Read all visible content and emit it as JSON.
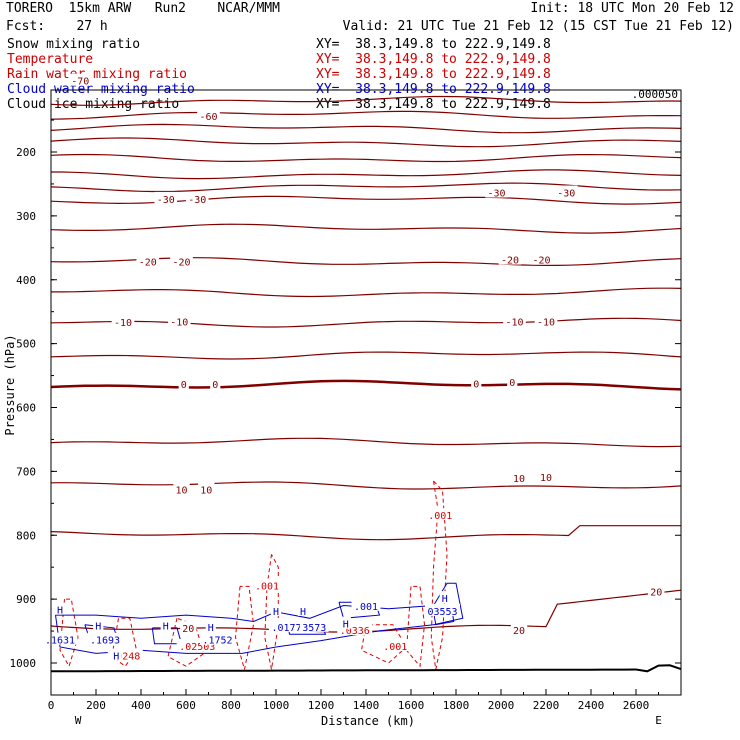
{
  "header": {
    "line1_left": "TORERO  15km ARW   Run2    NCAR/MMM",
    "line1_right": "Init: 18 UTC Mon 20 Feb 12",
    "line2_left": "Fcst:    27 h",
    "line2_right": "Valid: 21 UTC Tue 21 Feb 12 (15 CST Tue 21 Feb 12)"
  },
  "legend": [
    {
      "name": "Snow mixing ratio",
      "color": "#000000",
      "xy": "XY=  38.3,149.8 to 222.9,149.8"
    },
    {
      "name": "Temperature",
      "color": "#cc0000",
      "xy": "XY=  38.3,149.8 to 222.9,149.8"
    },
    {
      "name": "Rain water mixing ratio",
      "color": "#cc0000",
      "xy": "XY=  38.3,149.8 to 222.9,149.8"
    },
    {
      "name": "Cloud water mixing ratio",
      "color": "#0000cc",
      "xy": "XY=  38.3,149.8 to 222.9,149.8"
    },
    {
      "name": "Cloud ice mixing ratio",
      "color": "#000000",
      "xy": "XY=  38.3,149.8 to 222.9,149.8"
    }
  ],
  "corner_label": ".000050",
  "chart_data": {
    "type": "cross-section contour",
    "xlabel": "Distance (km)",
    "ylabel": "Pressure (hPa)",
    "xlim": [
      0,
      2800
    ],
    "ylim": [
      1025,
      90
    ],
    "x_ticks": [
      "0",
      "200",
      "400",
      "600",
      "800",
      "1000",
      "1200",
      "1400",
      "1600",
      "1800",
      "2000",
      "2200",
      "2400",
      "2600"
    ],
    "y_ticks": [
      "200",
      "300",
      "400",
      "500",
      "600",
      "700",
      "800",
      "900",
      "1000"
    ],
    "x_ends": [
      "W",
      "E"
    ],
    "temperature_isotherms_C": [
      -70,
      -65,
      -60,
      -55,
      -50,
      -45,
      -40,
      -35,
      -30,
      -25,
      -20,
      -15,
      -10,
      -5,
      0,
      5,
      10,
      15,
      20
    ],
    "temperature_labels": [
      {
        "text": "-70",
        "x": 130,
        "p": 90
      },
      {
        "text": "-60",
        "x": 700,
        "p": 145
      },
      {
        "text": "-30",
        "x": 510,
        "p": 275
      },
      {
        "text": "-30",
        "x": 650,
        "p": 275
      },
      {
        "text": "-30",
        "x": 1980,
        "p": 265
      },
      {
        "text": "-30",
        "x": 2290,
        "p": 265
      },
      {
        "text": "-20",
        "x": 430,
        "p": 373
      },
      {
        "text": "-20",
        "x": 580,
        "p": 373
      },
      {
        "text": "-20",
        "x": 2040,
        "p": 370
      },
      {
        "text": "-20",
        "x": 2180,
        "p": 370
      },
      {
        "text": "-10",
        "x": 320,
        "p": 468
      },
      {
        "text": "-10",
        "x": 570,
        "p": 467
      },
      {
        "text": "-10",
        "x": 2060,
        "p": 467
      },
      {
        "text": "-10",
        "x": 2200,
        "p": 467
      },
      {
        "text": "0",
        "x": 590,
        "p": 565
      },
      {
        "text": "0",
        "x": 730,
        "p": 565
      },
      {
        "text": "0",
        "x": 1890,
        "p": 564
      },
      {
        "text": "0",
        "x": 2050,
        "p": 562
      },
      {
        "text": "10",
        "x": 580,
        "p": 730
      },
      {
        "text": "10",
        "x": 690,
        "p": 730
      },
      {
        "text": "10",
        "x": 2080,
        "p": 712
      },
      {
        "text": "10",
        "x": 2200,
        "p": 710
      },
      {
        "text": "20",
        "x": 610,
        "p": 947
      },
      {
        "text": "20",
        "x": 2080,
        "p": 950
      },
      {
        "text": "20",
        "x": 2690,
        "p": 890
      }
    ],
    "rain_labels": [
      {
        "text": ".001",
        "x": 1730,
        "p": 770
      },
      {
        "text": ".001",
        "x": 960,
        "p": 880
      },
      {
        "text": ".001",
        "x": 1530,
        "p": 975
      },
      {
        "text": ".0248",
        "x": 330,
        "p": 990
      },
      {
        "text": ".02503",
        "x": 650,
        "p": 975
      },
      {
        "text": ".0336",
        "x": 1350,
        "p": 950
      }
    ],
    "cloud_labels": [
      {
        "text": "H",
        "x": 210,
        "p": 943
      },
      {
        "text": "H",
        "x": 510,
        "p": 943
      },
      {
        "text": "H",
        "x": 710,
        "p": 945
      },
      {
        "text": "H",
        "x": 1000,
        "p": 920
      },
      {
        "text": "H",
        "x": 1120,
        "p": 920
      },
      {
        "text": "H",
        "x": 1310,
        "p": 940
      },
      {
        "text": "H",
        "x": 1750,
        "p": 900
      },
      {
        "text": ".1631",
        "x": 40,
        "p": 965
      },
      {
        "text": ".1693",
        "x": 240,
        "p": 965
      },
      {
        "text": ".1752",
        "x": 740,
        "p": 965
      },
      {
        "text": ".001",
        "x": 1400,
        "p": 912
      },
      {
        "text": ".01774",
        "x": 1060,
        "p": 945
      },
      {
        "text": "3573",
        "x": 1170,
        "p": 945
      },
      {
        "text": "03553",
        "x": 1740,
        "p": 920
      }
    ],
    "high_labels": [
      {
        "text": "H",
        "x": 40,
        "p": 918
      },
      {
        "text": "H",
        "x": 290,
        "p": 990
      }
    ]
  }
}
